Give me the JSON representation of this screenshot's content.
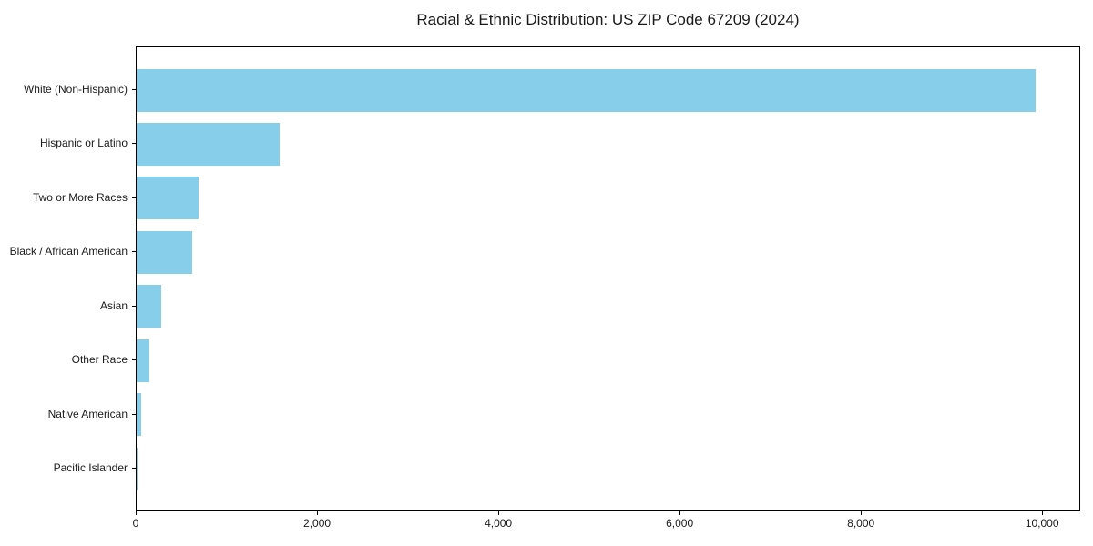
{
  "chart_data": {
    "type": "bar",
    "orientation": "horizontal",
    "title": "Racial & Ethnic Distribution: US ZIP Code 67209 (2024)",
    "categories": [
      "White (Non-Hispanic)",
      "Hispanic or Latino",
      "Two or More Races",
      "Black / African American",
      "Asian",
      "Other Race",
      "Native American",
      "Pacific Islander"
    ],
    "values": [
      9920,
      1580,
      680,
      610,
      270,
      140,
      48,
      8
    ],
    "xlabel": "",
    "ylabel": "",
    "xlim": [
      0,
      10420
    ],
    "xticks": [
      0,
      2000,
      4000,
      6000,
      8000,
      10000
    ],
    "xtick_labels": [
      "0",
      "2,000",
      "4,000",
      "6,000",
      "8,000",
      "10,000"
    ],
    "bar_color": "#87CEEB",
    "spine_color": "#000000",
    "text_color": "#1a1a1a",
    "background_color": "#ffffff",
    "grid": "off",
    "legend": "none"
  }
}
